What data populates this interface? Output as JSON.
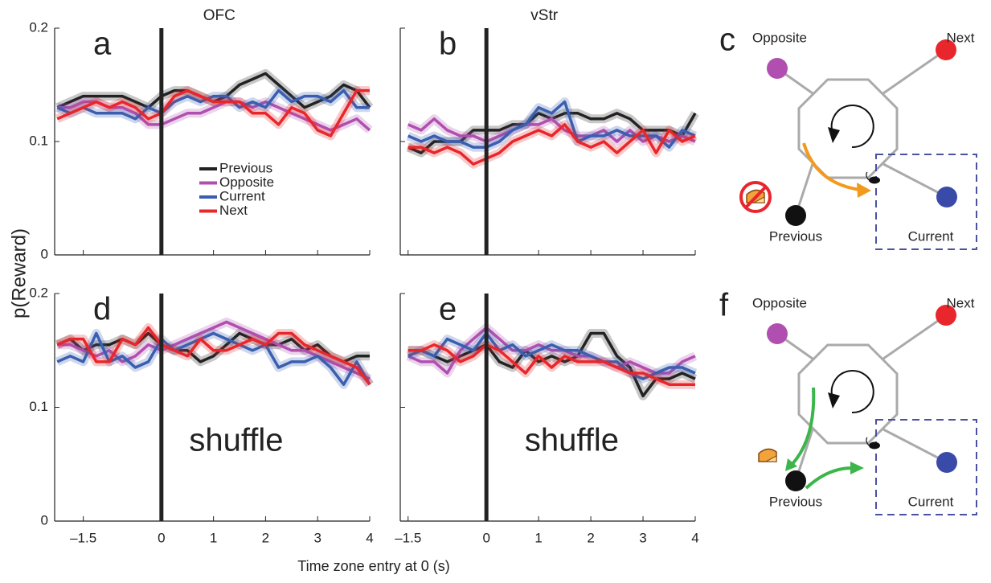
{
  "ylabel": "p(Reward)",
  "xlabel": "Time  zone entry  at 0 (s)",
  "chart_data": [
    {
      "type": "line",
      "label": "a",
      "title": "OFC",
      "xlim": [
        -2.05,
        4
      ],
      "ylim": [
        0,
        0.2
      ],
      "xticks": [
        {
          "value": -1.5,
          "label": "–1.5"
        },
        0,
        1,
        2,
        3,
        4
      ],
      "yticks": [
        0,
        0.1,
        0.2
      ],
      "xtick_labels": false,
      "ytick_labels": true,
      "vline": 0,
      "legend": true,
      "x": [
        -2,
        -1.75,
        -1.5,
        -1.25,
        -1,
        -0.75,
        -0.5,
        -0.25,
        0,
        0.25,
        0.5,
        0.75,
        1,
        1.25,
        1.5,
        1.75,
        2,
        2.25,
        2.5,
        2.75,
        3,
        3.25,
        3.5,
        3.75,
        4
      ],
      "series": [
        {
          "name": "Previous",
          "color": "#222222",
          "values": [
            0.13,
            0.135,
            0.14,
            0.14,
            0.14,
            0.14,
            0.135,
            0.13,
            0.14,
            0.145,
            0.145,
            0.14,
            0.135,
            0.14,
            0.15,
            0.155,
            0.16,
            0.15,
            0.14,
            0.13,
            0.135,
            0.14,
            0.15,
            0.145,
            0.13
          ]
        },
        {
          "name": "Opposite",
          "color": "#b04fb0",
          "values": [
            0.13,
            0.13,
            0.135,
            0.135,
            0.13,
            0.13,
            0.125,
            0.115,
            0.115,
            0.12,
            0.125,
            0.125,
            0.13,
            0.135,
            0.135,
            0.13,
            0.135,
            0.13,
            0.125,
            0.12,
            0.115,
            0.11,
            0.115,
            0.12,
            0.11
          ]
        },
        {
          "name": "Current",
          "color": "#3a5fb0",
          "values": [
            0.13,
            0.125,
            0.13,
            0.125,
            0.125,
            0.125,
            0.12,
            0.13,
            0.125,
            0.135,
            0.14,
            0.135,
            0.14,
            0.14,
            0.13,
            0.135,
            0.13,
            0.145,
            0.135,
            0.14,
            0.14,
            0.135,
            0.145,
            0.13,
            0.13
          ]
        },
        {
          "name": "Next",
          "color": "#e8262b",
          "values": [
            0.12,
            0.125,
            0.13,
            0.135,
            0.13,
            0.135,
            0.13,
            0.12,
            0.125,
            0.14,
            0.145,
            0.14,
            0.135,
            0.135,
            0.135,
            0.125,
            0.125,
            0.115,
            0.13,
            0.125,
            0.11,
            0.105,
            0.125,
            0.145,
            0.145
          ]
        }
      ]
    },
    {
      "type": "line",
      "label": "b",
      "title": "vStr",
      "xlim": [
        -1.65,
        4
      ],
      "ylim": [
        0,
        0.2
      ],
      "xticks": [
        {
          "value": -1.5,
          "label": "–1.5"
        },
        0,
        1,
        2,
        3,
        4
      ],
      "yticks": [
        0,
        0.1,
        0.2
      ],
      "xtick_labels": false,
      "ytick_labels": false,
      "vline": 0,
      "legend": false,
      "x": [
        -1.5,
        -1.25,
        -1,
        -0.75,
        -0.5,
        -0.25,
        0,
        0.25,
        0.5,
        0.75,
        1,
        1.25,
        1.5,
        1.75,
        2,
        2.25,
        2.5,
        2.75,
        3,
        3.25,
        3.5,
        3.75,
        4
      ],
      "series": [
        {
          "name": "Previous",
          "color": "#222222",
          "values": [
            0.095,
            0.09,
            0.1,
            0.1,
            0.1,
            0.11,
            0.11,
            0.11,
            0.115,
            0.115,
            0.125,
            0.12,
            0.125,
            0.125,
            0.12,
            0.12,
            0.125,
            0.12,
            0.11,
            0.11,
            0.11,
            0.105,
            0.125
          ]
        },
        {
          "name": "Opposite",
          "color": "#b04fb0",
          "values": [
            0.115,
            0.11,
            0.12,
            0.11,
            0.105,
            0.105,
            0.1,
            0.105,
            0.11,
            0.115,
            0.115,
            0.12,
            0.11,
            0.105,
            0.105,
            0.11,
            0.1,
            0.11,
            0.1,
            0.105,
            0.1,
            0.105,
            0.1
          ]
        },
        {
          "name": "Current",
          "color": "#3a5fb0",
          "values": [
            0.105,
            0.1,
            0.105,
            0.1,
            0.1,
            0.095,
            0.095,
            0.1,
            0.11,
            0.115,
            0.13,
            0.125,
            0.135,
            0.1,
            0.105,
            0.105,
            0.11,
            0.105,
            0.105,
            0.105,
            0.095,
            0.11,
            0.105
          ]
        },
        {
          "name": "Next",
          "color": "#e8262b",
          "values": [
            0.095,
            0.095,
            0.09,
            0.095,
            0.09,
            0.08,
            0.085,
            0.09,
            0.1,
            0.105,
            0.11,
            0.105,
            0.115,
            0.1,
            0.095,
            0.1,
            0.09,
            0.1,
            0.11,
            0.09,
            0.11,
            0.1,
            0.105
          ]
        }
      ]
    },
    {
      "type": "line",
      "label": "d",
      "annotation": "shuffle",
      "xlim": [
        -2.05,
        4
      ],
      "ylim": [
        0,
        0.2
      ],
      "xticks": [
        {
          "value": -1.5,
          "label": "–1.5"
        },
        0,
        1,
        2,
        3,
        4
      ],
      "yticks": [
        0,
        0.1,
        0.2
      ],
      "xtick_labels": true,
      "ytick_labels": true,
      "vline": 0,
      "legend": false,
      "x": [
        -2,
        -1.75,
        -1.5,
        -1.25,
        -1,
        -0.75,
        -0.5,
        -0.25,
        0,
        0.25,
        0.5,
        0.75,
        1,
        1.25,
        1.5,
        1.75,
        2,
        2.25,
        2.5,
        2.75,
        3,
        3.25,
        3.5,
        3.75,
        4
      ],
      "series": [
        {
          "name": "Previous",
          "color": "#222222",
          "values": [
            0.155,
            0.16,
            0.15,
            0.155,
            0.155,
            0.16,
            0.155,
            0.165,
            0.155,
            0.15,
            0.15,
            0.14,
            0.145,
            0.155,
            0.165,
            0.16,
            0.155,
            0.155,
            0.16,
            0.15,
            0.155,
            0.145,
            0.14,
            0.145,
            0.145
          ]
        },
        {
          "name": "Opposite",
          "color": "#b04fb0",
          "values": [
            0.155,
            0.155,
            0.15,
            0.145,
            0.15,
            0.14,
            0.145,
            0.155,
            0.15,
            0.155,
            0.16,
            0.165,
            0.17,
            0.175,
            0.17,
            0.165,
            0.16,
            0.155,
            0.15,
            0.15,
            0.145,
            0.14,
            0.135,
            0.13,
            0.125
          ]
        },
        {
          "name": "Current",
          "color": "#3a5fb0",
          "values": [
            0.14,
            0.145,
            0.14,
            0.165,
            0.14,
            0.145,
            0.135,
            0.14,
            0.16,
            0.15,
            0.155,
            0.16,
            0.165,
            0.16,
            0.155,
            0.15,
            0.155,
            0.135,
            0.14,
            0.14,
            0.145,
            0.135,
            0.12,
            0.14,
            0.12
          ]
        },
        {
          "name": "Next",
          "color": "#e8262b",
          "values": [
            0.155,
            0.16,
            0.16,
            0.14,
            0.14,
            0.16,
            0.155,
            0.17,
            0.155,
            0.15,
            0.145,
            0.16,
            0.15,
            0.15,
            0.155,
            0.16,
            0.155,
            0.165,
            0.165,
            0.155,
            0.15,
            0.145,
            0.14,
            0.135,
            0.12
          ]
        }
      ]
    },
    {
      "type": "line",
      "label": "e",
      "annotation": "shuffle",
      "xlim": [
        -1.65,
        4
      ],
      "ylim": [
        0,
        0.2
      ],
      "xticks": [
        {
          "value": -1.5,
          "label": "–1.5"
        },
        0,
        1,
        2,
        3,
        4
      ],
      "yticks": [
        0,
        0.1,
        0.2
      ],
      "xtick_labels": true,
      "ytick_labels": false,
      "vline": 0,
      "legend": false,
      "x": [
        -1.5,
        -1.25,
        -1,
        -0.75,
        -0.5,
        -0.25,
        0,
        0.25,
        0.5,
        0.75,
        1,
        1.25,
        1.5,
        1.75,
        2,
        2.25,
        2.5,
        2.75,
        3,
        3.25,
        3.5,
        3.75,
        4
      ],
      "series": [
        {
          "name": "Previous",
          "color": "#222222",
          "values": [
            0.15,
            0.15,
            0.145,
            0.14,
            0.145,
            0.15,
            0.155,
            0.14,
            0.135,
            0.15,
            0.14,
            0.145,
            0.14,
            0.145,
            0.165,
            0.165,
            0.145,
            0.135,
            0.11,
            0.125,
            0.125,
            0.13,
            0.125
          ]
        },
        {
          "name": "Opposite",
          "color": "#b04fb0",
          "values": [
            0.145,
            0.14,
            0.14,
            0.13,
            0.15,
            0.16,
            0.17,
            0.16,
            0.15,
            0.15,
            0.155,
            0.15,
            0.15,
            0.145,
            0.145,
            0.14,
            0.135,
            0.14,
            0.135,
            0.13,
            0.13,
            0.14,
            0.145
          ]
        },
        {
          "name": "Current",
          "color": "#3a5fb0",
          "values": [
            0.145,
            0.15,
            0.145,
            0.16,
            0.155,
            0.15,
            0.165,
            0.15,
            0.155,
            0.145,
            0.15,
            0.155,
            0.15,
            0.15,
            0.145,
            0.14,
            0.14,
            0.13,
            0.125,
            0.13,
            0.135,
            0.135,
            0.13
          ]
        },
        {
          "name": "Next",
          "color": "#e8262b",
          "values": [
            0.15,
            0.15,
            0.155,
            0.15,
            0.14,
            0.145,
            0.155,
            0.15,
            0.14,
            0.13,
            0.145,
            0.135,
            0.145,
            0.14,
            0.14,
            0.14,
            0.135,
            0.13,
            0.13,
            0.125,
            0.12,
            0.12,
            0.12
          ]
        }
      ]
    }
  ],
  "diagrams": [
    {
      "label": "c",
      "nodes": [
        "Opposite",
        "Next",
        "Previous",
        "Current"
      ]
    },
    {
      "label": "f",
      "nodes": [
        "Opposite",
        "Next",
        "Previous",
        "Current"
      ]
    }
  ]
}
